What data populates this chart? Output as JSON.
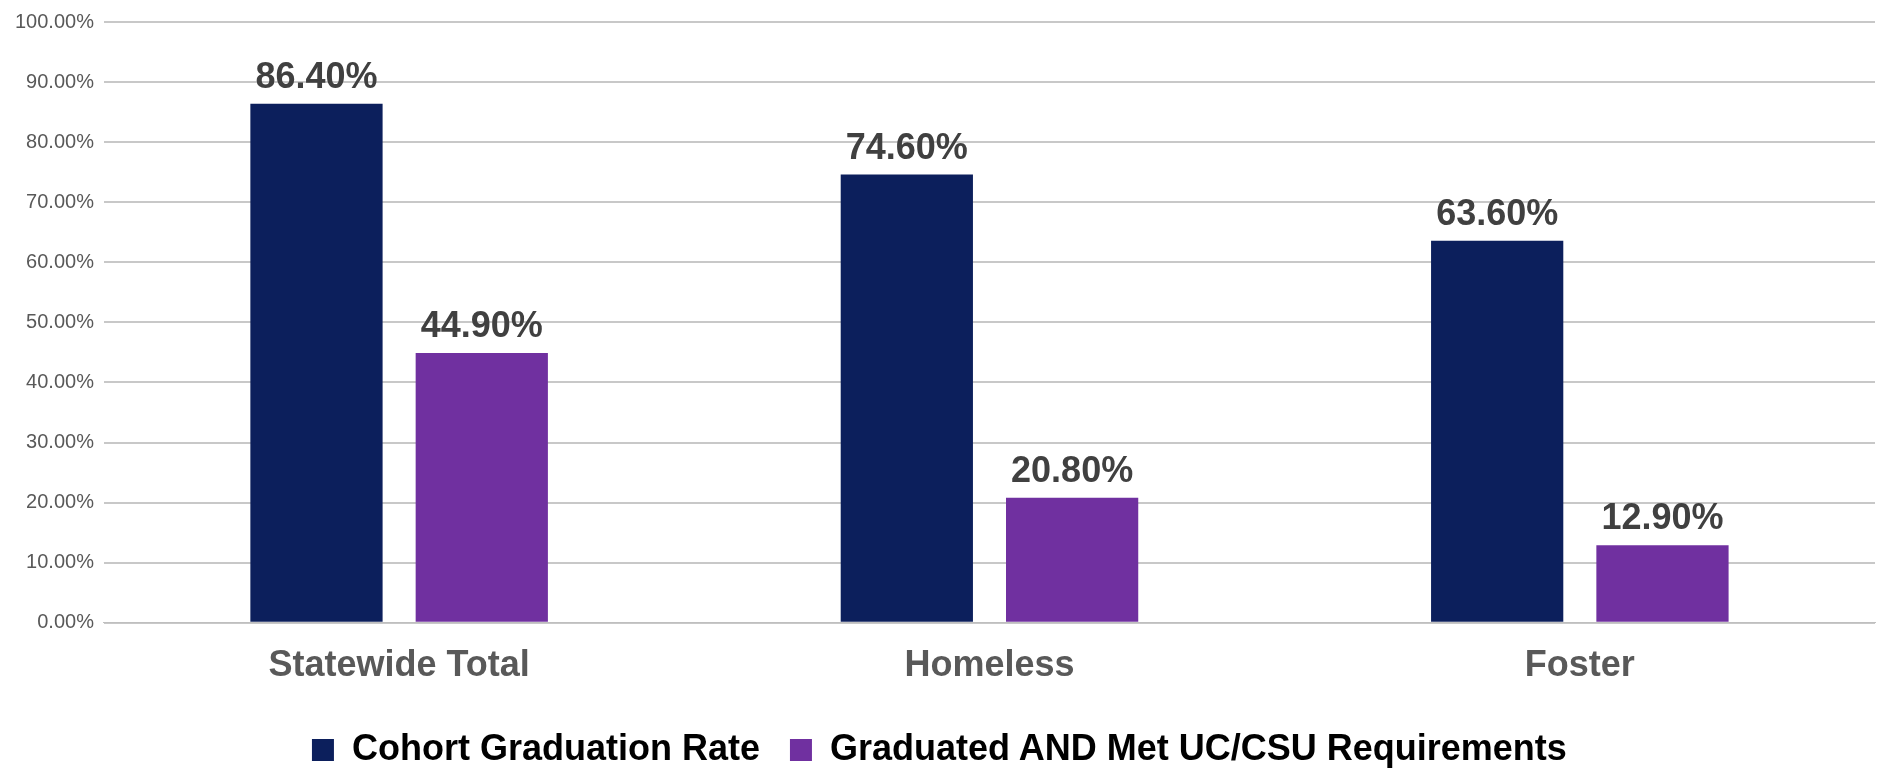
{
  "chart_data": {
    "type": "bar",
    "categories": [
      "Statewide Total",
      "Homeless",
      "Foster"
    ],
    "series": [
      {
        "name": "Cohort Graduation Rate",
        "color": "#0c1f5c",
        "values": [
          86.4,
          74.6,
          63.6
        ],
        "value_labels": [
          "86.40%",
          "74.60%",
          "63.60%"
        ]
      },
      {
        "name": "Graduated AND Met UC/CSU Requirements",
        "color": "#7030a0",
        "values": [
          44.9,
          20.8,
          12.9
        ],
        "value_labels": [
          "44.90%",
          "20.80%",
          "12.90%"
        ]
      }
    ],
    "ylim": [
      0,
      100
    ],
    "yticks": [
      {
        "value": 0,
        "label": "0.00%"
      },
      {
        "value": 10,
        "label": "10.00%"
      },
      {
        "value": 20,
        "label": "20.00%"
      },
      {
        "value": 30,
        "label": "30.00%"
      },
      {
        "value": 40,
        "label": "40.00%"
      },
      {
        "value": 50,
        "label": "50.00%"
      },
      {
        "value": 60,
        "label": "60.00%"
      },
      {
        "value": 70,
        "label": "70.00%"
      },
      {
        "value": 80,
        "label": "80.00%"
      },
      {
        "value": 90,
        "label": "90.00%"
      },
      {
        "value": 100,
        "label": "100.00%"
      }
    ],
    "grid": "y",
    "legend": "bottom"
  }
}
